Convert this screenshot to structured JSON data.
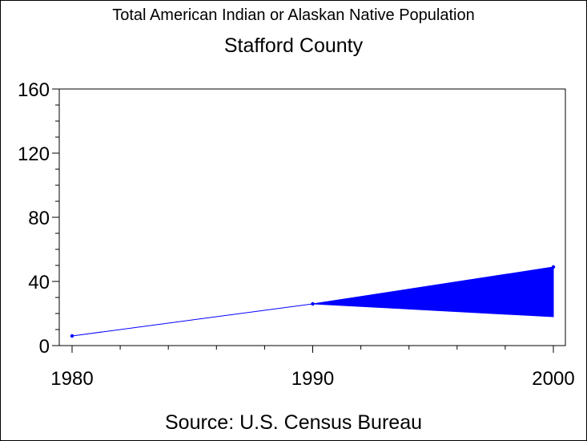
{
  "title": "Total American Indian or Alaskan Native Population",
  "subtitle": "Stafford County",
  "footer": "Source: U.S. Census Bureau",
  "colors": {
    "series": "#0000ff",
    "axis": "#000000",
    "background": "#ffffff"
  },
  "chart_data": {
    "type": "line",
    "title": "Total American Indian or Alaskan Native Population",
    "subtitle": "Stafford County",
    "xlabel": "",
    "ylabel": "",
    "x_ticks": [
      1980,
      1990,
      2000
    ],
    "x_minor_step": 2,
    "xlim": [
      1980,
      2000
    ],
    "y_ticks": [
      0,
      40,
      80,
      120,
      160
    ],
    "y_minor_step": 10,
    "ylim": [
      0,
      160
    ],
    "grid": false,
    "series": [
      {
        "x": [
          1980,
          1990
        ],
        "y": [
          6,
          26
        ]
      }
    ],
    "projection_band": {
      "x": [
        1990,
        2000
      ],
      "upper": [
        26,
        49
      ],
      "lower": [
        26,
        18
      ]
    }
  }
}
